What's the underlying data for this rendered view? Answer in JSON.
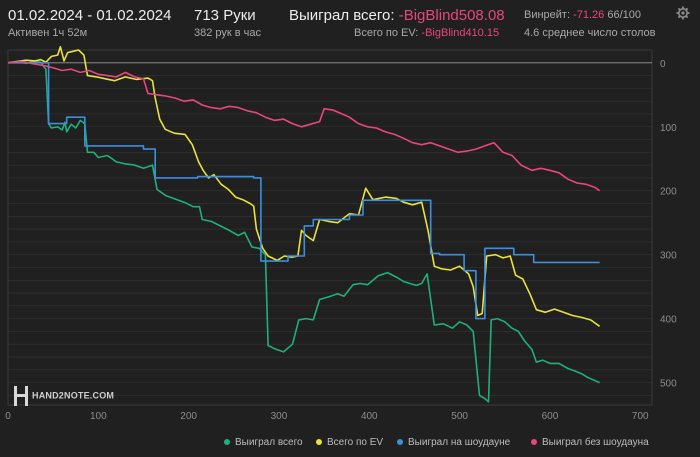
{
  "header": {
    "date_range": "01.02.2024 - 01.02.2024",
    "active": "Активен 1ч 52м",
    "hands": "713 Руки",
    "hands_per_hour": "382 рук в час",
    "won_total_label": "Выиграл всего:",
    "won_total_value": "-BigBlind508.08",
    "ev_label": "Всего по EV:",
    "ev_value": "-BigBlind410.15",
    "winrate_label": "Винрейт:",
    "winrate_value": "-71.26",
    "winrate_suffix": "66/100",
    "avg_tables": "4.6 среднее число столов"
  },
  "logo": {
    "text": "HAND2NOTE.COM"
  },
  "icons": {
    "settings": "gear-icon"
  },
  "colors": {
    "background": "#202020",
    "won_total": "#1fb07a",
    "ev": "#e8e23a",
    "showdown": "#3e8ee0",
    "non_showdown": "#e8467c",
    "negative_text": "#e8467c"
  },
  "chart_data": {
    "type": "line",
    "xlim": [
      0,
      713
    ],
    "ylim": [
      -535,
      20
    ],
    "x_ticks": [
      0,
      100,
      200,
      300,
      400,
      500,
      600,
      700
    ],
    "y_ticks": [
      0,
      100,
      200,
      300,
      400,
      500
    ],
    "y_tick_labels": [
      "0",
      "100",
      "200",
      "300",
      "400",
      "500"
    ],
    "grid": true,
    "legend_position": "bottom-right",
    "series": [
      {
        "name": "Выиграл всего",
        "color": "#1fb07a",
        "points": [
          [
            0,
            0
          ],
          [
            10,
            2
          ],
          [
            20,
            -1
          ],
          [
            30,
            3
          ],
          [
            36,
            1
          ],
          [
            42,
            -10
          ],
          [
            45,
            -95
          ],
          [
            48,
            -102
          ],
          [
            55,
            -100
          ],
          [
            60,
            -105
          ],
          [
            63,
            -93
          ],
          [
            65,
            -108
          ],
          [
            70,
            -96
          ],
          [
            75,
            -102
          ],
          [
            80,
            -90
          ],
          [
            85,
            -95
          ],
          [
            88,
            -140
          ],
          [
            95,
            -140
          ],
          [
            100,
            -148
          ],
          [
            110,
            -145
          ],
          [
            120,
            -155
          ],
          [
            130,
            -158
          ],
          [
            140,
            -160
          ],
          [
            150,
            -165
          ],
          [
            160,
            -160
          ],
          [
            165,
            -198
          ],
          [
            175,
            -208
          ],
          [
            185,
            -213
          ],
          [
            195,
            -218
          ],
          [
            205,
            -225
          ],
          [
            212,
            -225
          ],
          [
            215,
            -245
          ],
          [
            225,
            -248
          ],
          [
            235,
            -255
          ],
          [
            245,
            -262
          ],
          [
            255,
            -270
          ],
          [
            262,
            -265
          ],
          [
            270,
            -288
          ],
          [
            278,
            -290
          ],
          [
            285,
            -300
          ],
          [
            288,
            -442
          ],
          [
            295,
            -447
          ],
          [
            305,
            -452
          ],
          [
            315,
            -440
          ],
          [
            322,
            -402
          ],
          [
            330,
            -400
          ],
          [
            338,
            -402
          ],
          [
            345,
            -370
          ],
          [
            355,
            -366
          ],
          [
            365,
            -361
          ],
          [
            372,
            -365
          ],
          [
            382,
            -347
          ],
          [
            390,
            -345
          ],
          [
            398,
            -347
          ],
          [
            410,
            -333
          ],
          [
            420,
            -328
          ],
          [
            430,
            -335
          ],
          [
            438,
            -342
          ],
          [
            445,
            -345
          ],
          [
            452,
            -348
          ],
          [
            458,
            -345
          ],
          [
            464,
            -330
          ],
          [
            472,
            -410
          ],
          [
            482,
            -408
          ],
          [
            492,
            -415
          ],
          [
            500,
            -405
          ],
          [
            508,
            -410
          ],
          [
            515,
            -420
          ],
          [
            522,
            -520
          ],
          [
            528,
            -525
          ],
          [
            532,
            -530
          ],
          [
            535,
            -402
          ],
          [
            542,
            -400
          ],
          [
            550,
            -405
          ],
          [
            558,
            -415
          ],
          [
            565,
            -420
          ],
          [
            572,
            -435
          ],
          [
            580,
            -448
          ],
          [
            585,
            -468
          ],
          [
            592,
            -465
          ],
          [
            600,
            -470
          ],
          [
            610,
            -470
          ],
          [
            620,
            -478
          ],
          [
            628,
            -482
          ],
          [
            635,
            -486
          ],
          [
            642,
            -492
          ],
          [
            650,
            -497
          ],
          [
            655,
            -500
          ]
        ]
      },
      {
        "name": "Всего по EV",
        "color": "#e8e23a",
        "points": [
          [
            0,
            0
          ],
          [
            10,
            2
          ],
          [
            20,
            4
          ],
          [
            30,
            3
          ],
          [
            36,
            5
          ],
          [
            42,
            1
          ],
          [
            48,
            10
          ],
          [
            55,
            12
          ],
          [
            58,
            25
          ],
          [
            62,
            3
          ],
          [
            66,
            16
          ],
          [
            72,
            18
          ],
          [
            78,
            20
          ],
          [
            84,
            12
          ],
          [
            88,
            -20
          ],
          [
            98,
            -22
          ],
          [
            108,
            -25
          ],
          [
            118,
            -28
          ],
          [
            130,
            -22
          ],
          [
            142,
            -26
          ],
          [
            155,
            -24
          ],
          [
            160,
            -28
          ],
          [
            163,
            -55
          ],
          [
            168,
            -88
          ],
          [
            174,
            -104
          ],
          [
            184,
            -110
          ],
          [
            196,
            -112
          ],
          [
            204,
            -128
          ],
          [
            211,
            -155
          ],
          [
            216,
            -168
          ],
          [
            222,
            -180
          ],
          [
            228,
            -175
          ],
          [
            236,
            -190
          ],
          [
            244,
            -198
          ],
          [
            252,
            -210
          ],
          [
            260,
            -214
          ],
          [
            268,
            -220
          ],
          [
            272,
            -224
          ],
          [
            275,
            -260
          ],
          [
            282,
            -290
          ],
          [
            288,
            -302
          ],
          [
            298,
            -309
          ],
          [
            306,
            -302
          ],
          [
            314,
            -304
          ],
          [
            321,
            -302
          ],
          [
            325,
            -262
          ],
          [
            330,
            -270
          ],
          [
            338,
            -278
          ],
          [
            345,
            -245
          ],
          [
            355,
            -248
          ],
          [
            365,
            -250
          ],
          [
            378,
            -236
          ],
          [
            388,
            -238
          ],
          [
            396,
            -196
          ],
          [
            404,
            -214
          ],
          [
            418,
            -210
          ],
          [
            430,
            -212
          ],
          [
            438,
            -218
          ],
          [
            448,
            -222
          ],
          [
            458,
            -218
          ],
          [
            465,
            -262
          ],
          [
            472,
            -318
          ],
          [
            480,
            -322
          ],
          [
            490,
            -324
          ],
          [
            500,
            -318
          ],
          [
            510,
            -330
          ],
          [
            515,
            -350
          ],
          [
            520,
            -395
          ],
          [
            525,
            -392
          ],
          [
            530,
            -302
          ],
          [
            540,
            -300
          ],
          [
            548,
            -305
          ],
          [
            556,
            -302
          ],
          [
            562,
            -332
          ],
          [
            570,
            -338
          ],
          [
            578,
            -362
          ],
          [
            585,
            -386
          ],
          [
            595,
            -390
          ],
          [
            605,
            -385
          ],
          [
            615,
            -390
          ],
          [
            625,
            -395
          ],
          [
            635,
            -398
          ],
          [
            645,
            -402
          ],
          [
            655,
            -412
          ]
        ]
      },
      {
        "name": "Выиграл на шоудауне",
        "color": "#3e8ee0",
        "points": [
          [
            0,
            0
          ],
          [
            45,
            0
          ],
          [
            45,
            -95
          ],
          [
            65,
            -95
          ],
          [
            65,
            -85
          ],
          [
            85,
            -85
          ],
          [
            85,
            -130
          ],
          [
            150,
            -130
          ],
          [
            150,
            -135
          ],
          [
            163,
            -135
          ],
          [
            163,
            -180
          ],
          [
            210,
            -180
          ],
          [
            210,
            -178
          ],
          [
            272,
            -178
          ],
          [
            272,
            -180
          ],
          [
            280,
            -180
          ],
          [
            280,
            -310
          ],
          [
            310,
            -310
          ],
          [
            310,
            -302
          ],
          [
            328,
            -302
          ],
          [
            328,
            -255
          ],
          [
            338,
            -255
          ],
          [
            338,
            -245
          ],
          [
            378,
            -245
          ],
          [
            378,
            -238
          ],
          [
            393,
            -238
          ],
          [
            393,
            -215
          ],
          [
            468,
            -215
          ],
          [
            468,
            -298
          ],
          [
            478,
            -298
          ],
          [
            478,
            -300
          ],
          [
            505,
            -300
          ],
          [
            505,
            -325
          ],
          [
            518,
            -325
          ],
          [
            518,
            -400
          ],
          [
            528,
            -400
          ],
          [
            528,
            -290
          ],
          [
            560,
            -290
          ],
          [
            560,
            -300
          ],
          [
            582,
            -300
          ],
          [
            582,
            -312
          ],
          [
            655,
            -312
          ]
        ]
      },
      {
        "name": "Выиграл без шоудауна",
        "color": "#e8467c",
        "points": [
          [
            0,
            0
          ],
          [
            15,
            2
          ],
          [
            30,
            -2
          ],
          [
            42,
            -5
          ],
          [
            50,
            -8
          ],
          [
            60,
            -12
          ],
          [
            70,
            -10
          ],
          [
            80,
            -15
          ],
          [
            90,
            -12
          ],
          [
            100,
            -18
          ],
          [
            110,
            -20
          ],
          [
            120,
            -22
          ],
          [
            130,
            -15
          ],
          [
            140,
            -22
          ],
          [
            150,
            -25
          ],
          [
            155,
            -48
          ],
          [
            165,
            -50
          ],
          [
            175,
            -52
          ],
          [
            185,
            -55
          ],
          [
            195,
            -60
          ],
          [
            205,
            -58
          ],
          [
            215,
            -66
          ],
          [
            225,
            -70
          ],
          [
            235,
            -72
          ],
          [
            245,
            -68
          ],
          [
            255,
            -70
          ],
          [
            265,
            -75
          ],
          [
            275,
            -78
          ],
          [
            285,
            -85
          ],
          [
            295,
            -90
          ],
          [
            305,
            -88
          ],
          [
            315,
            -95
          ],
          [
            325,
            -100
          ],
          [
            335,
            -96
          ],
          [
            345,
            -92
          ],
          [
            350,
            -72
          ],
          [
            360,
            -74
          ],
          [
            370,
            -80
          ],
          [
            378,
            -85
          ],
          [
            388,
            -95
          ],
          [
            398,
            -100
          ],
          [
            408,
            -102
          ],
          [
            418,
            -108
          ],
          [
            428,
            -112
          ],
          [
            438,
            -118
          ],
          [
            448,
            -125
          ],
          [
            458,
            -128
          ],
          [
            468,
            -125
          ],
          [
            478,
            -130
          ],
          [
            488,
            -135
          ],
          [
            498,
            -140
          ],
          [
            508,
            -138
          ],
          [
            518,
            -135
          ],
          [
            528,
            -130
          ],
          [
            538,
            -125
          ],
          [
            548,
            -140
          ],
          [
            558,
            -145
          ],
          [
            568,
            -160
          ],
          [
            580,
            -168
          ],
          [
            590,
            -165
          ],
          [
            600,
            -168
          ],
          [
            610,
            -172
          ],
          [
            620,
            -182
          ],
          [
            630,
            -188
          ],
          [
            640,
            -190
          ],
          [
            650,
            -195
          ],
          [
            655,
            -200
          ]
        ]
      }
    ]
  }
}
